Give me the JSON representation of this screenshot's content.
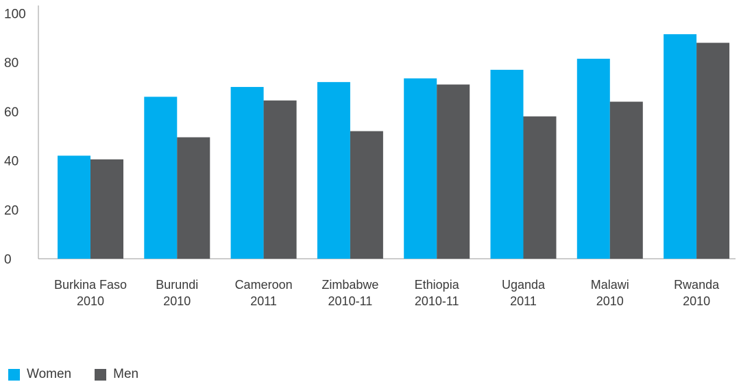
{
  "chart_data": {
    "type": "bar",
    "title": "",
    "xlabel": "",
    "ylabel": "",
    "ylim": [
      0,
      100
    ],
    "yticks": [
      0,
      20,
      40,
      60,
      80,
      100
    ],
    "grid": false,
    "legend_position": "bottom-left",
    "categories": [
      [
        "Burkina Faso",
        "2010"
      ],
      [
        "Burundi",
        "2010"
      ],
      [
        "Cameroon",
        "2011"
      ],
      [
        "Zimbabwe",
        "2010-11"
      ],
      [
        "Ethiopia",
        "2010-11"
      ],
      [
        "Uganda",
        "2011"
      ],
      [
        "Malawi",
        "2010"
      ],
      [
        "Rwanda",
        "2010"
      ]
    ],
    "series": [
      {
        "name": "Women",
        "color": "#00aeef",
        "values": [
          42,
          66,
          70,
          72,
          73.5,
          77,
          81.5,
          91.5
        ]
      },
      {
        "name": "Men",
        "color": "#58595b",
        "values": [
          40.5,
          49.5,
          64.5,
          52,
          71,
          58,
          64,
          88
        ]
      }
    ]
  }
}
